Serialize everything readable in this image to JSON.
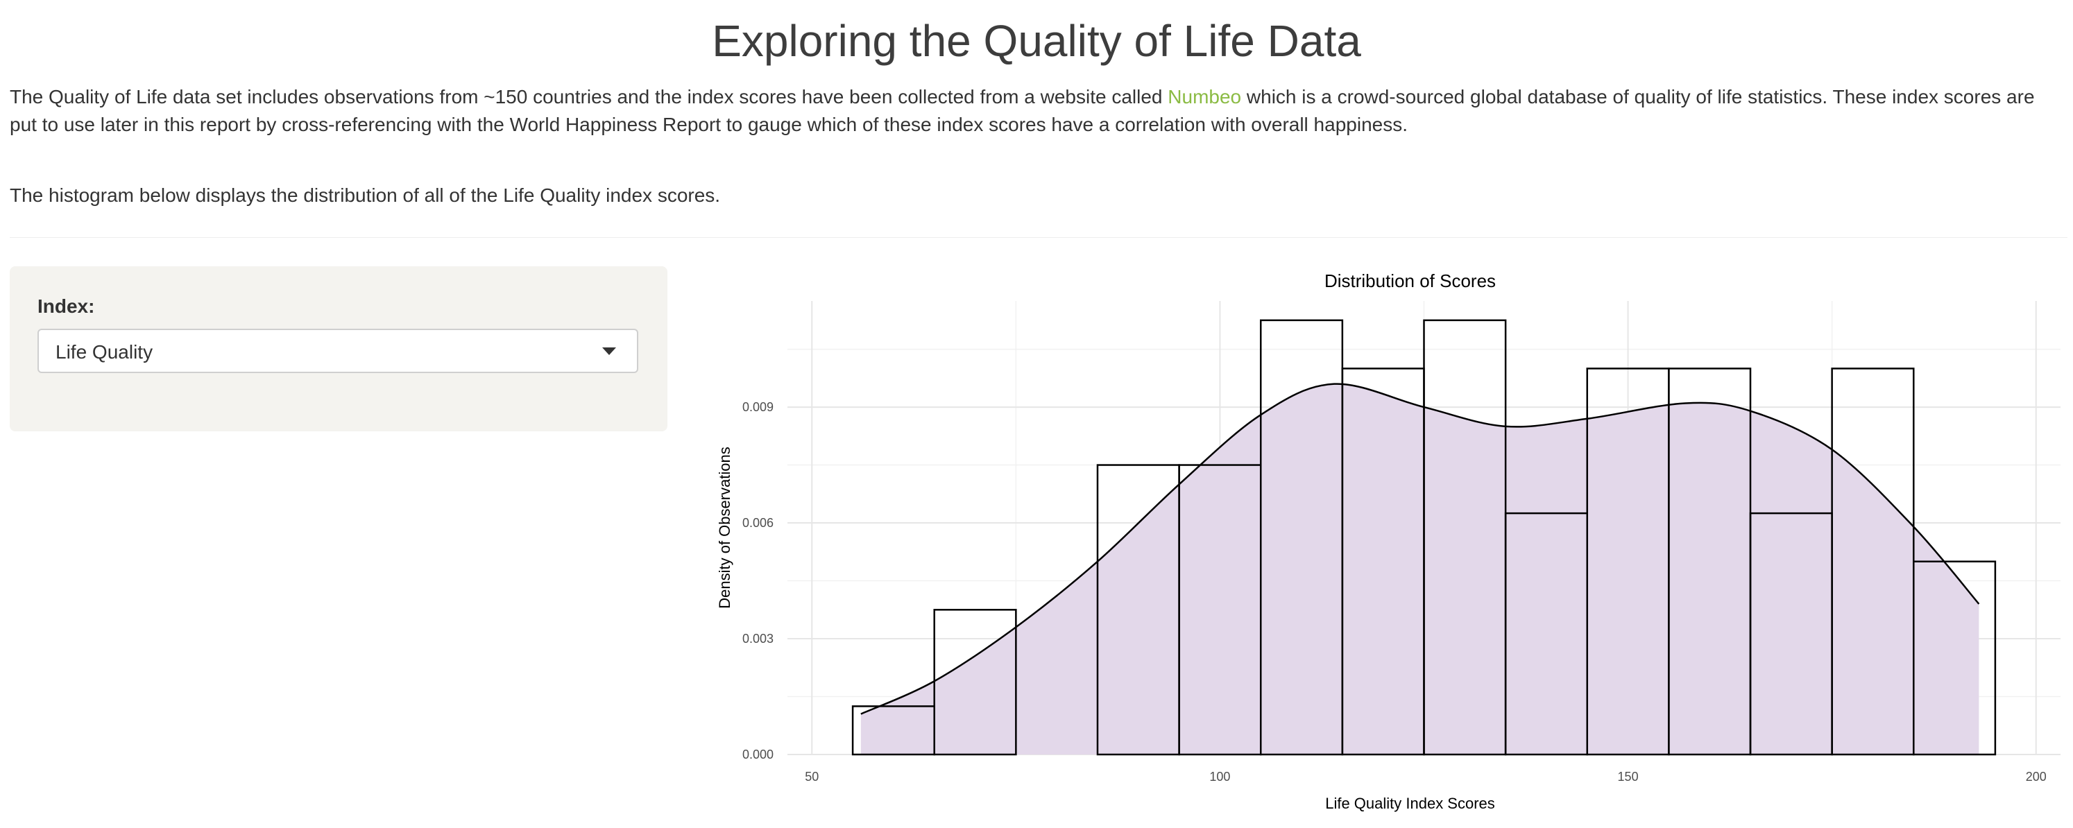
{
  "page": {
    "title": "Exploring the Quality of Life Data",
    "intro_before_link": "The Quality of Life data set includes observations from ~150 countries and the index scores have been collected from a website called ",
    "intro_link": "Numbeo",
    "intro_after_link": " which is a crowd-sourced global database of quality of life statistics. These index scores are put to use later in this report by cross-referencing with the World Happiness Report to gauge which of these index scores have a correlation with overall happiness.",
    "histogram_note": "The histogram below displays the distribution of all of the Life Quality index scores."
  },
  "sidebar": {
    "index_label": "Index:",
    "selected_index": "Life Quality"
  },
  "colors": {
    "link": "#8bbb44",
    "density_fill": "#e3d8ea",
    "panel_bg": "#f4f3ef"
  },
  "chart_data": {
    "type": "bar",
    "title": "Distribution of Scores",
    "xlabel": "Life Quality Index Scores",
    "ylabel": "Density of Observations",
    "xlim": [
      47,
      203
    ],
    "ylim": [
      0,
      0.01175
    ],
    "x_ticks": [
      50,
      100,
      150,
      200
    ],
    "y_ticks": [
      0.0,
      0.003,
      0.006,
      0.009
    ],
    "grid": true,
    "histogram": {
      "bin_edges": [
        55,
        65,
        75,
        85,
        95,
        105,
        115,
        125,
        135,
        145,
        155,
        165,
        175,
        185,
        195
      ],
      "density": [
        0.00125,
        0.00375,
        0.0,
        0.0075,
        0.0075,
        0.01125,
        0.01,
        0.01125,
        0.00625,
        0.01,
        0.01,
        0.00625,
        0.01,
        0.005
      ]
    },
    "density_curve": {
      "x": [
        56,
        65,
        75,
        85,
        95,
        105,
        114,
        125,
        135,
        145,
        157,
        165,
        175,
        185,
        193
      ],
      "y": [
        0.00105,
        0.0019,
        0.0033,
        0.005,
        0.007,
        0.0088,
        0.0096,
        0.009,
        0.0085,
        0.0087,
        0.0091,
        0.0089,
        0.0079,
        0.0059,
        0.0039
      ]
    }
  }
}
